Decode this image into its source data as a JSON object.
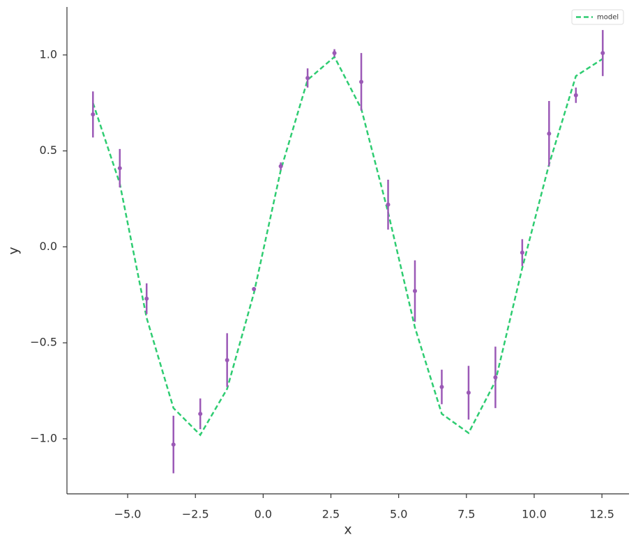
{
  "chart_data": {
    "type": "errorbar",
    "xlabel": "x",
    "ylabel": "y",
    "x": [
      -6.28,
      -5.29,
      -4.3,
      -3.31,
      -2.32,
      -1.33,
      -0.34,
      0.65,
      1.64,
      2.63,
      3.62,
      4.61,
      5.6,
      6.59,
      7.58,
      8.57,
      9.56,
      10.55,
      11.54,
      12.53
    ],
    "data": {
      "color": "#9b59b6",
      "values": [
        0.69,
        0.41,
        -0.27,
        -1.03,
        -0.87,
        -0.59,
        -0.22,
        0.42,
        0.88,
        1.01,
        0.86,
        0.22,
        -0.23,
        -0.73,
        -0.76,
        -0.68,
        -0.03,
        0.59,
        0.79,
        1.01
      ],
      "errors": [
        0.12,
        0.1,
        0.08,
        0.15,
        0.08,
        0.14,
        0.01,
        0.02,
        0.05,
        0.02,
        0.15,
        0.13,
        0.16,
        0.09,
        0.14,
        0.16,
        0.07,
        0.17,
        0.04,
        0.12
      ]
    },
    "series": [
      {
        "name": "model",
        "color": "#2ecc71",
        "dashed": true,
        "values": [
          0.75,
          0.33,
          -0.37,
          -0.84,
          -0.98,
          -0.74,
          -0.24,
          0.4,
          0.87,
          0.99,
          0.72,
          0.18,
          -0.42,
          -0.87,
          -0.97,
          -0.7,
          -0.11,
          0.43,
          0.89,
          0.98
        ]
      }
    ],
    "xlim": [
      -7.24,
      13.5
    ],
    "ylim": [
      -1.287,
      1.25
    ],
    "xticks": [
      {
        "value": -5.0,
        "label": "−5.0"
      },
      {
        "value": -2.5,
        "label": "−2.5"
      },
      {
        "value": 0.0,
        "label": "0.0"
      },
      {
        "value": 2.5,
        "label": "2.5"
      },
      {
        "value": 5.0,
        "label": "5.0"
      },
      {
        "value": 7.5,
        "label": "7.5"
      },
      {
        "value": 10.0,
        "label": "10.0"
      },
      {
        "value": 12.5,
        "label": "12.5"
      }
    ],
    "yticks": [
      {
        "value": -1.0,
        "label": "−1.0"
      },
      {
        "value": -0.5,
        "label": "−0.5"
      },
      {
        "value": 0.0,
        "label": "0.0"
      },
      {
        "value": 0.5,
        "label": "0.5"
      },
      {
        "value": 1.0,
        "label": "1.0"
      }
    ],
    "legend": "upper right"
  }
}
